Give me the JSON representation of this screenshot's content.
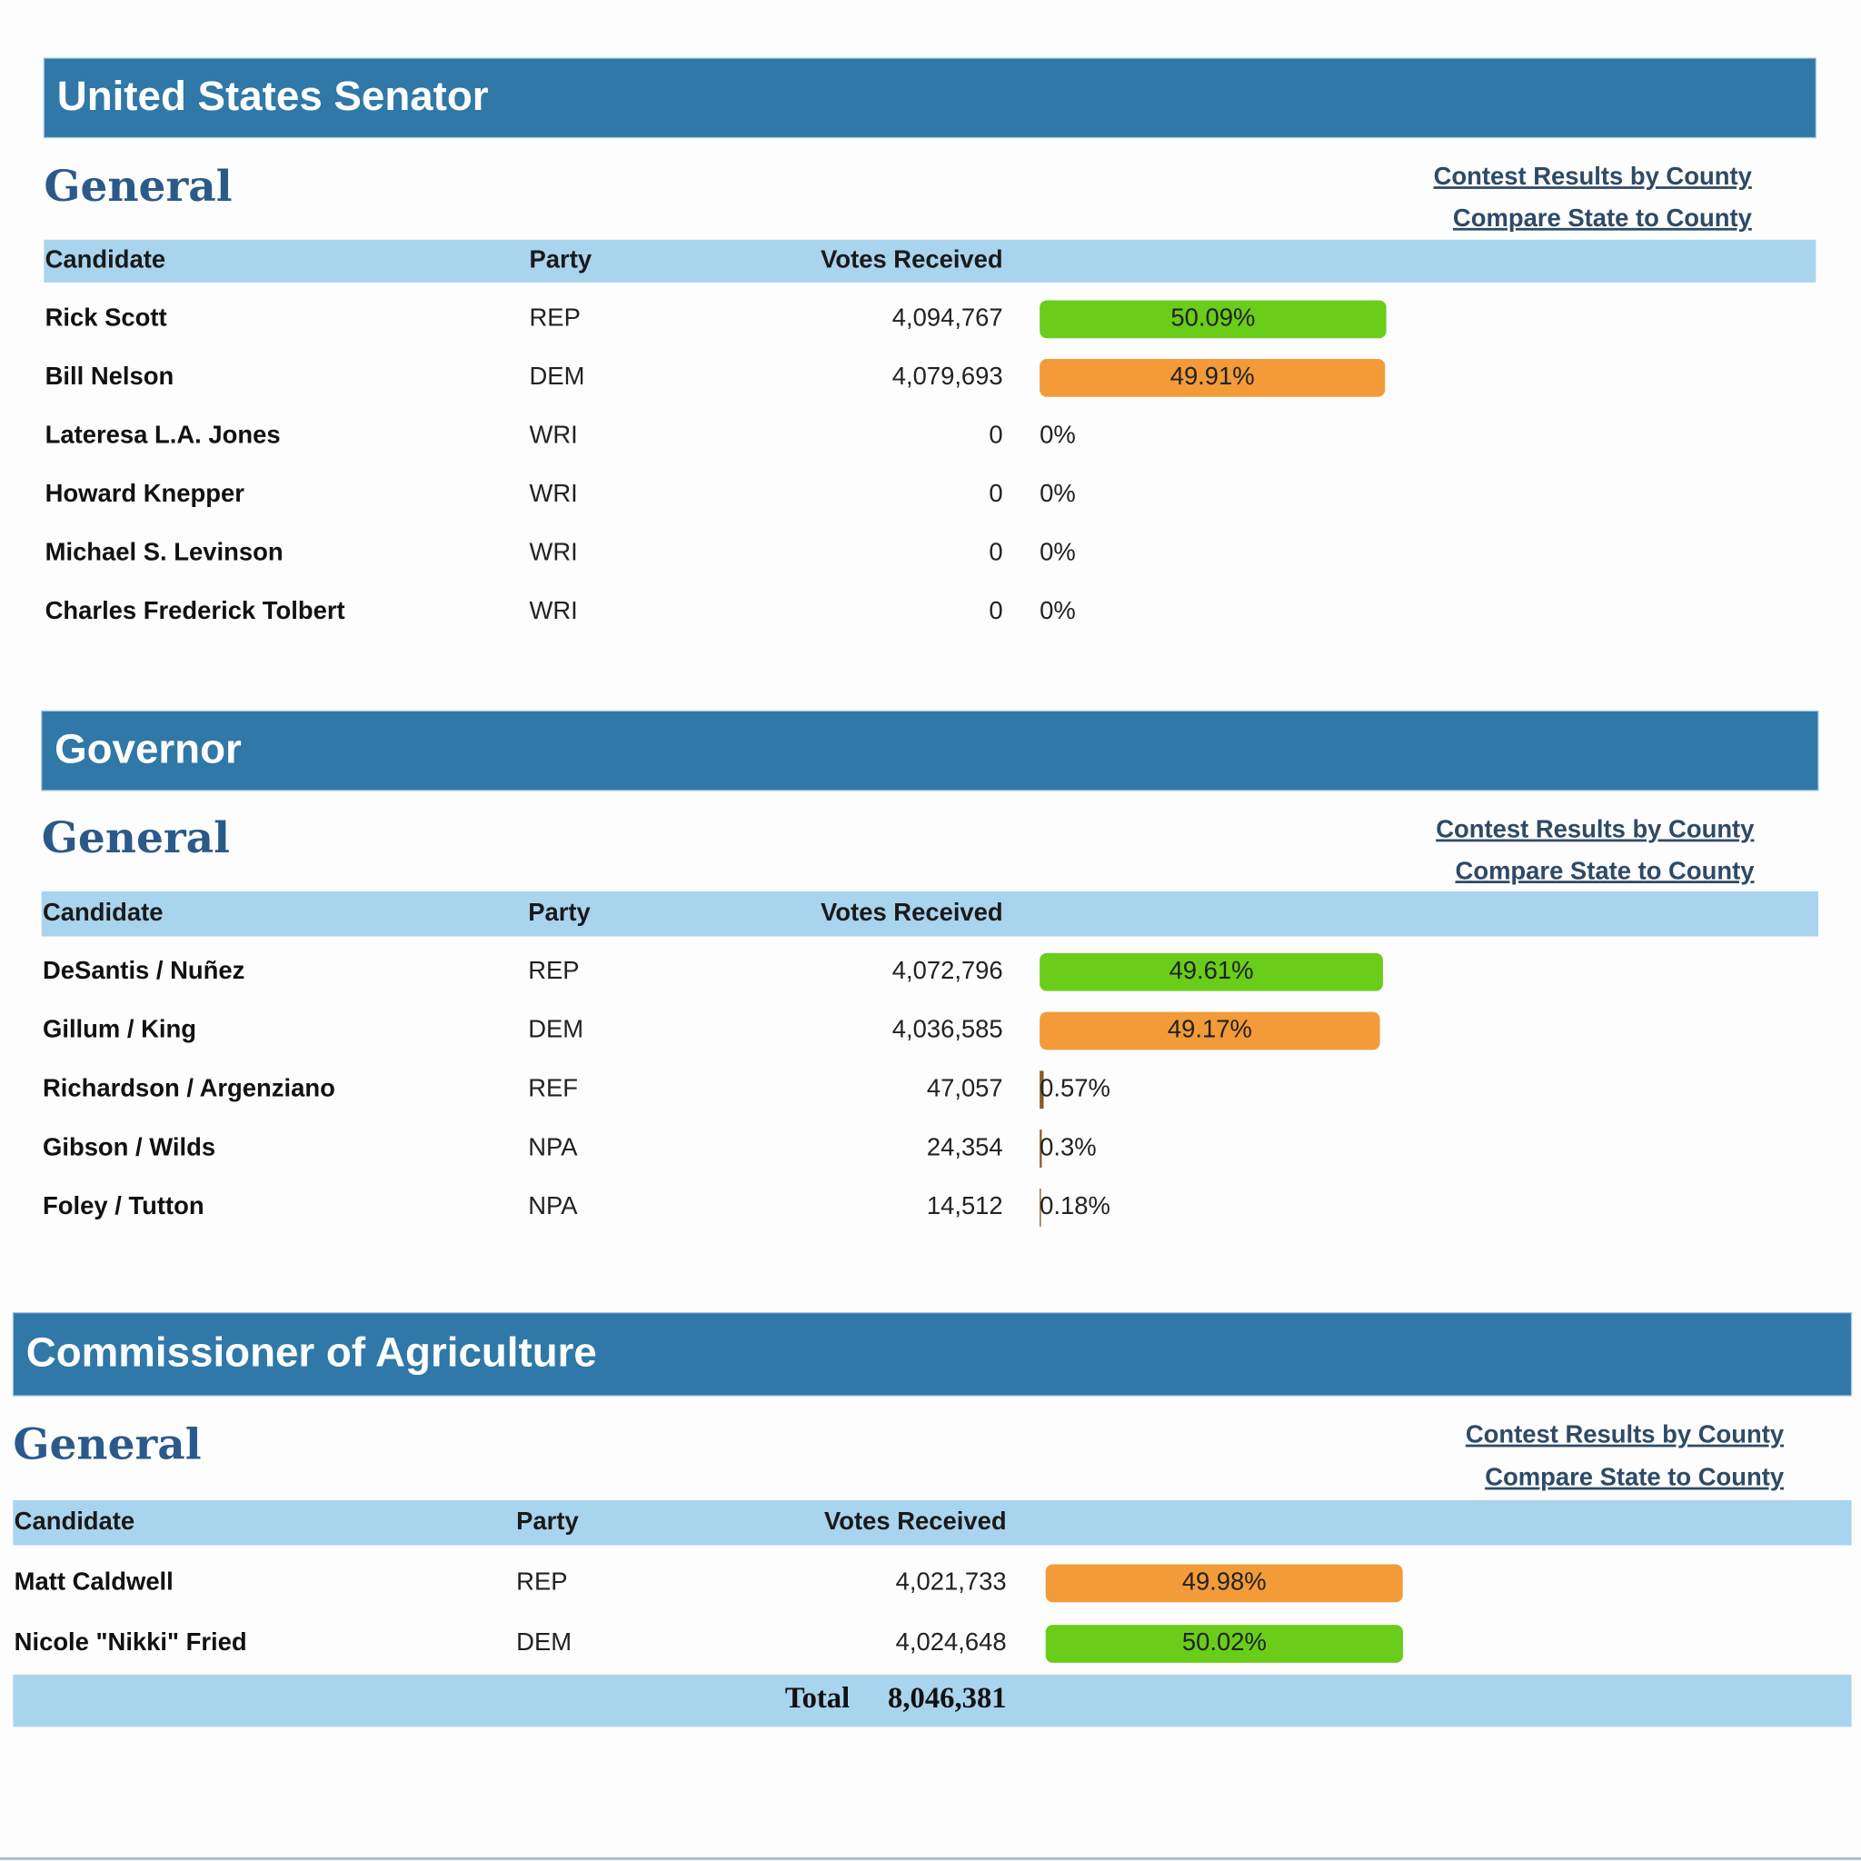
{
  "contests": [
    {
      "title": "United States Senator",
      "subtitle": "General",
      "links": [
        "Contest Results by County",
        "Compare State to County"
      ],
      "headers": [
        "Candidate",
        "Party",
        "Votes Received"
      ],
      "rows": [
        {
          "candidate": "Rick Scott",
          "party": "REP",
          "votes": "4,094,767",
          "percent": {
            "value": 50.09,
            "label": "50.09%"
          },
          "bar_color": "#6acd1a"
        },
        {
          "candidate": "Bill Nelson",
          "party": "DEM",
          "votes": "4,079,693",
          "percent": {
            "value": 49.91,
            "label": "49.91%"
          },
          "bar_color": "#f29b38"
        },
        {
          "candidate": "Lateresa L.A. Jones",
          "party": "WRI",
          "votes": "0",
          "percent": {
            "value": 0,
            "label": "0%"
          },
          "bar_color": "#8a5a2a"
        },
        {
          "candidate": "Howard Knepper",
          "party": "WRI",
          "votes": "0",
          "percent": {
            "value": 0,
            "label": "0%"
          },
          "bar_color": "#8a5a2a"
        },
        {
          "candidate": "Michael S. Levinson",
          "party": "WRI",
          "votes": "0",
          "percent": {
            "value": 0,
            "label": "0%"
          },
          "bar_color": "#8a5a2a"
        },
        {
          "candidate": "Charles Frederick Tolbert",
          "party": "WRI",
          "votes": "0",
          "percent": {
            "value": 0,
            "label": "0%"
          },
          "bar_color": "#8a5a2a"
        }
      ]
    },
    {
      "title": "Governor",
      "subtitle": "General",
      "links": [
        "Contest Results by County",
        "Compare State to County"
      ],
      "headers": [
        "Candidate",
        "Party",
        "Votes Received"
      ],
      "rows": [
        {
          "candidate": "DeSantis / Nuñez",
          "party": "REP",
          "votes": "4,072,796",
          "percent": {
            "value": 49.61,
            "label": "49.61%"
          },
          "bar_color": "#6acd1a"
        },
        {
          "candidate": "Gillum / King",
          "party": "DEM",
          "votes": "4,036,585",
          "percent": {
            "value": 49.17,
            "label": "49.17%"
          },
          "bar_color": "#f29b38"
        },
        {
          "candidate": "Richardson / Argenziano",
          "party": "REF",
          "votes": "47,057",
          "percent": {
            "value": 0.57,
            "label": "0.57%"
          },
          "bar_color": "#8a5a2a"
        },
        {
          "candidate": "Gibson / Wilds",
          "party": "NPA",
          "votes": "24,354",
          "percent": {
            "value": 0.3,
            "label": "0.3%"
          },
          "bar_color": "#8a5a2a"
        },
        {
          "candidate": "Foley / Tutton",
          "party": "NPA",
          "votes": "14,512",
          "percent": {
            "value": 0.18,
            "label": "0.18%"
          },
          "bar_color": "#8a5a2a"
        }
      ]
    },
    {
      "title": "Commissioner of Agriculture",
      "subtitle": "General",
      "links": [
        "Contest Results by County",
        "Compare State to County"
      ],
      "headers": [
        "Candidate",
        "Party",
        "Votes Received"
      ],
      "rows": [
        {
          "candidate": "Matt Caldwell",
          "party": "REP",
          "votes": "4,021,733",
          "percent": {
            "value": 49.98,
            "label": "49.98%"
          },
          "bar_color": "#f29b38"
        },
        {
          "candidate": "Nicole \"Nikki\" Fried",
          "party": "DEM",
          "votes": "4,024,648",
          "percent": {
            "value": 50.02,
            "label": "50.02%"
          },
          "bar_color": "#6acd1a"
        }
      ],
      "total": {
        "label": "Total",
        "votes": "8,046,381"
      }
    }
  ]
}
